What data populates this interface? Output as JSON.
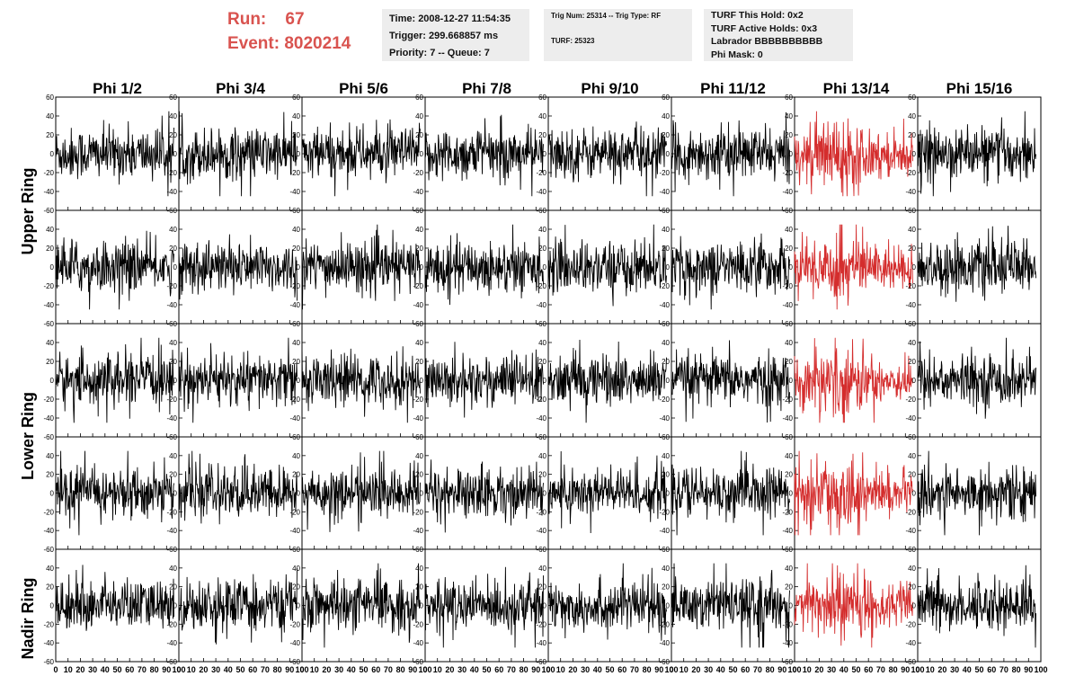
{
  "header": {
    "run_label": "Run:",
    "run_value": "67",
    "event_label": "Event:",
    "event_value": "8020214"
  },
  "info_time": {
    "time": "Time: 2008-12-27 11:54:35",
    "trigger": "Trigger: 299.668857 ms",
    "priority": "Priority: 7 -- Queue: 7"
  },
  "info_trig": {
    "trig": "Trig Num: 25314 -- Trig Type: RF",
    "turf": "TURF: 25323"
  },
  "info_turf": {
    "hold": "TURF This Hold: 0x2",
    "active": "TURF Active Holds: 0x3",
    "labrador": "Labrador BBBBBBBBBB",
    "mask": "Phi Mask: 0"
  },
  "colors": {
    "trace": "#000000",
    "highlight_trace": "#d42d2d",
    "header_red": "#d9534f",
    "box_bg": "#ededed"
  },
  "chart_data": {
    "type": "line",
    "columns": [
      "Phi 1/2",
      "Phi 3/4",
      "Phi 5/6",
      "Phi 7/8",
      "Phi 9/10",
      "Phi 11/12",
      "Phi 13/14",
      "Phi 15/16"
    ],
    "row_labels": [
      "Upper Ring",
      "",
      "Lower Ring",
      "",
      "Nadir Ring"
    ],
    "highlighted_column": "Phi 13/14",
    "xlim": [
      0,
      100
    ],
    "ylim": [
      -60,
      60
    ],
    "x_ticks": [
      "0",
      "10",
      "20",
      "30",
      "40",
      "50",
      "60",
      "70",
      "80",
      "90",
      "100"
    ],
    "y_ticks": [
      "60",
      "40",
      "20",
      "0",
      "-20",
      "-40",
      "-60"
    ],
    "samples_per_trace": 260,
    "x_range_of_traces": [
      0,
      96
    ],
    "typical_amplitude": 15,
    "peak_amplitude": 45
  }
}
